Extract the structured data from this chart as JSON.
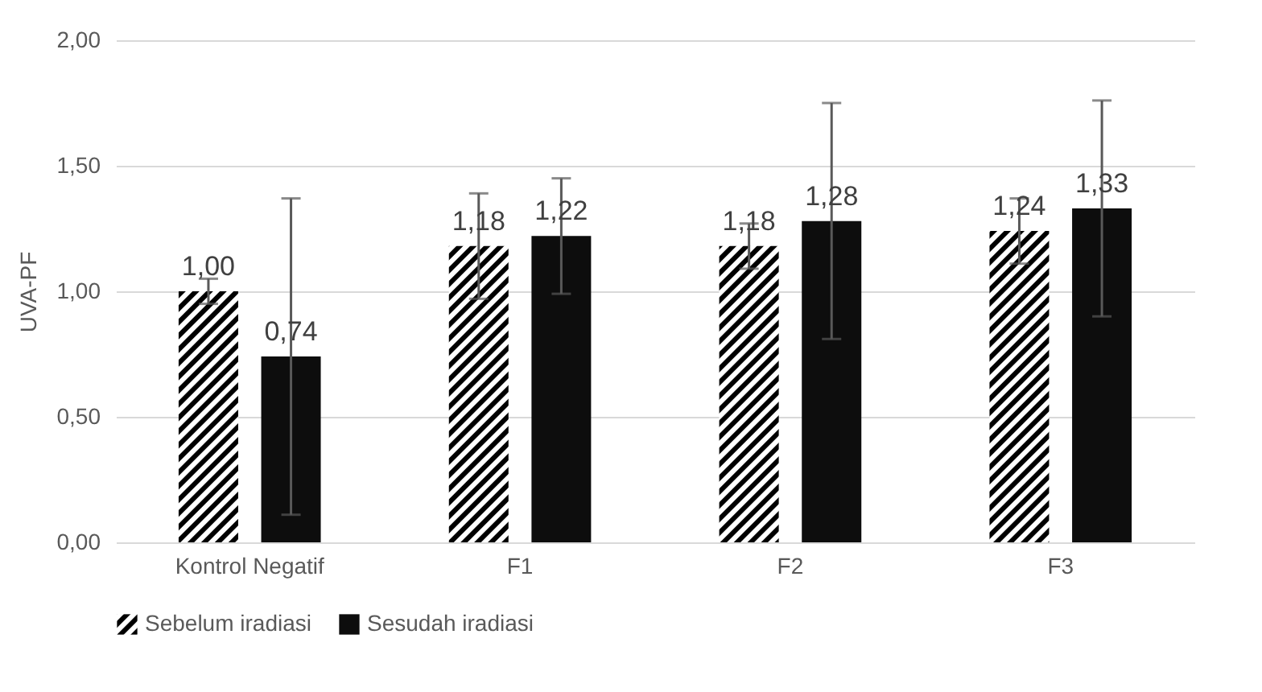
{
  "chart_data": {
    "type": "bar",
    "ylabel": "UVA-PF",
    "categories": [
      "Kontrol Negatif",
      "F1",
      "F2",
      "F3"
    ],
    "series": [
      {
        "name": "Sebelum iradiasi",
        "color": "#000000",
        "values": [
          1.0,
          1.18,
          1.18,
          1.24
        ],
        "value_labels": [
          "1,00",
          "1,18",
          "1,18",
          "1,24"
        ],
        "errors": [
          0.05,
          0.21,
          0.09,
          0.13
        ]
      },
      {
        "name": "Sesudah iradiasi",
        "color": "#0d0d0d",
        "values": [
          0.74,
          1.22,
          1.28,
          1.33
        ],
        "value_labels": [
          "0,74",
          "1,22",
          "1,28",
          "1,33"
        ],
        "errors": [
          0.63,
          0.23,
          0.47,
          0.43
        ]
      }
    ],
    "ylim": [
      0,
      2
    ],
    "yticks": [
      {
        "value": 0,
        "label": "0,00"
      },
      {
        "value": 0.5,
        "label": "0,50"
      },
      {
        "value": 1,
        "label": "1,00"
      },
      {
        "value": 1.5,
        "label": "1,50"
      },
      {
        "value": 2,
        "label": "2,00"
      }
    ],
    "grid": "y",
    "legend": "bottom"
  }
}
